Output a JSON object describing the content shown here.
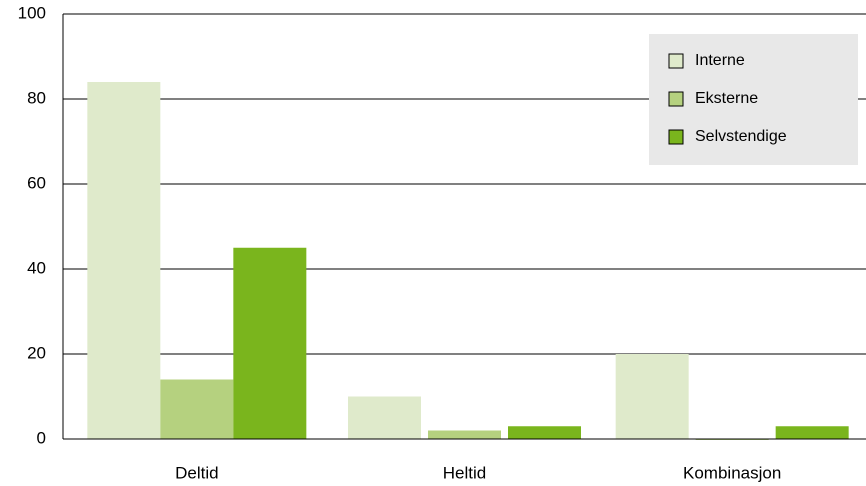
{
  "chart_data": {
    "type": "bar",
    "categories": [
      "Deltid",
      "Heltid",
      "Kombinasjon"
    ],
    "series": [
      {
        "name": "Interne",
        "color": "#dfeacb",
        "values": [
          84,
          10,
          20
        ]
      },
      {
        "name": "Eksterne",
        "color": "#b5d17f",
        "values": [
          14,
          2,
          0
        ]
      },
      {
        "name": "Selvstendige",
        "color": "#7ab51d",
        "values": [
          45,
          3,
          3
        ]
      }
    ],
    "ylim": [
      0,
      100
    ],
    "yticks": [
      0,
      20,
      40,
      60,
      80,
      100
    ],
    "grid": true,
    "legend": "top-right"
  }
}
